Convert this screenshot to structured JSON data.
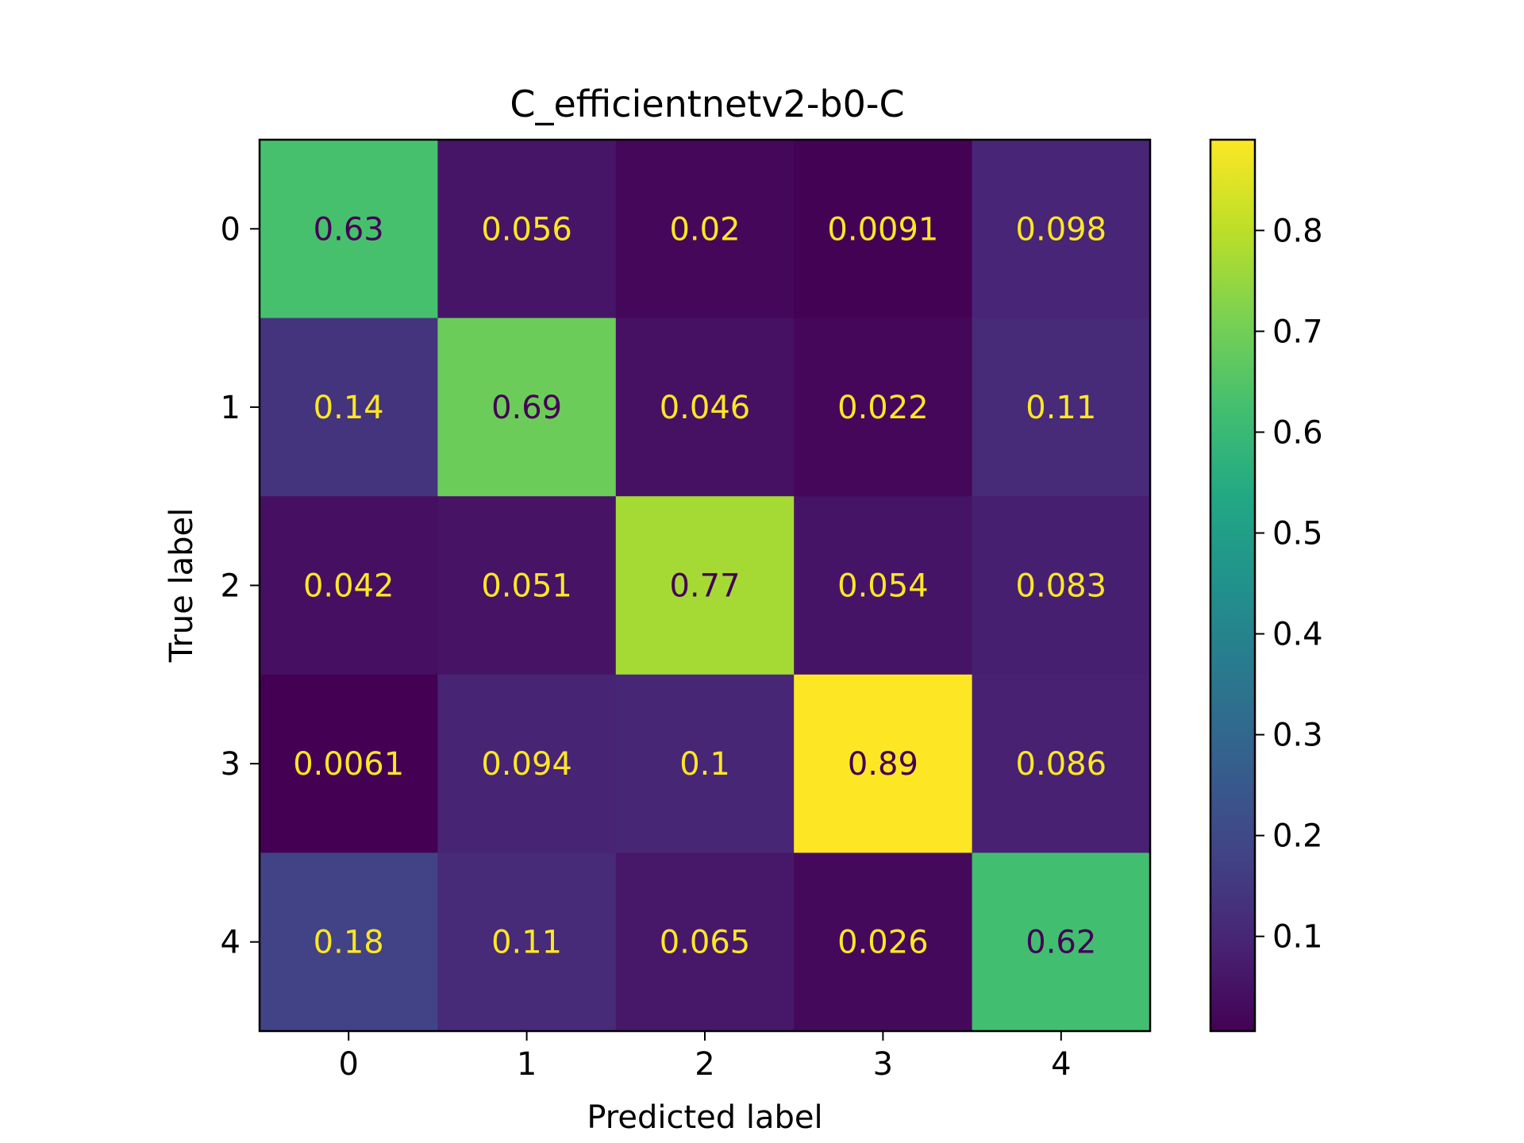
{
  "chart_data": {
    "type": "heatmap",
    "title": "C_efficientnetv2-b0-C",
    "xlabel": "Predicted label",
    "ylabel": "True label",
    "x_categories": [
      "0",
      "1",
      "2",
      "3",
      "4"
    ],
    "y_categories": [
      "0",
      "1",
      "2",
      "3",
      "4"
    ],
    "matrix": [
      [
        0.63,
        0.056,
        0.02,
        0.0091,
        0.098
      ],
      [
        0.14,
        0.69,
        0.046,
        0.022,
        0.11
      ],
      [
        0.042,
        0.051,
        0.77,
        0.054,
        0.083
      ],
      [
        0.0061,
        0.094,
        0.1,
        0.89,
        0.086
      ],
      [
        0.18,
        0.11,
        0.065,
        0.026,
        0.62
      ]
    ],
    "cell_labels": [
      [
        "0.63",
        "0.056",
        "0.02",
        "0.0091",
        "0.098"
      ],
      [
        "0.14",
        "0.69",
        "0.046",
        "0.022",
        "0.11"
      ],
      [
        "0.042",
        "0.051",
        "0.77",
        "0.054",
        "0.083"
      ],
      [
        "0.0061",
        "0.094",
        "0.1",
        "0.89",
        "0.086"
      ],
      [
        "0.18",
        "0.11",
        "0.065",
        "0.026",
        "0.62"
      ]
    ],
    "colormap": "viridis",
    "colorbar": {
      "range": [
        0.0061,
        0.89
      ],
      "ticks": [
        0.1,
        0.2,
        0.3,
        0.4,
        0.5,
        0.6,
        0.7,
        0.8
      ],
      "tick_labels": [
        "0.1",
        "0.2",
        "0.3",
        "0.4",
        "0.5",
        "0.6",
        "0.7",
        "0.8"
      ]
    },
    "text_colors": {
      "light": "#fde725",
      "dark": "#440154"
    },
    "grid": false
  }
}
